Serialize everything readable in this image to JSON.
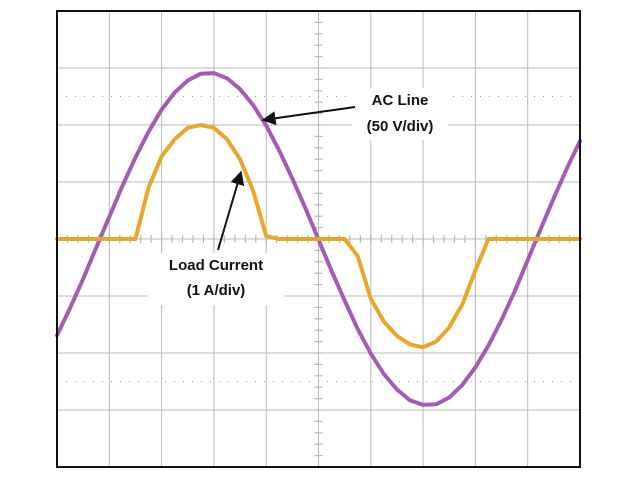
{
  "chart_data": {
    "type": "line",
    "x": [
      0,
      0.25,
      0.5,
      0.75,
      1,
      1.25,
      1.5,
      1.75,
      2,
      2.25,
      2.5,
      2.75,
      3,
      3.25,
      3.5,
      3.75,
      4,
      4.25,
      4.5,
      4.75,
      5,
      5.25,
      5.5,
      5.75,
      6,
      6.25,
      6.5,
      6.75,
      7,
      7.25,
      7.5,
      7.75,
      8,
      8.25,
      8.5,
      8.75,
      9,
      9.25,
      9.5,
      9.75,
      10
    ],
    "xlim": [
      0,
      10
    ],
    "ylim": [
      -4,
      4
    ],
    "grid": true,
    "series": [
      {
        "name": "AC Line",
        "scale": "(50 V/div)",
        "color": "#a25db3",
        "values": [
          -1.69,
          -1.21,
          -0.7,
          -0.15,
          0.39,
          0.93,
          1.43,
          1.88,
          2.27,
          2.57,
          2.78,
          2.9,
          2.91,
          2.82,
          2.63,
          2.35,
          1.99,
          1.55,
          1.06,
          0.54,
          -0.01,
          -0.56,
          -1.08,
          -1.58,
          -2.01,
          -2.37,
          -2.64,
          -2.83,
          -2.91,
          -2.9,
          -2.78,
          -2.56,
          -2.25,
          -1.87,
          -1.42,
          -0.92,
          -0.37,
          0.18,
          0.72,
          1.24,
          1.72
        ]
      },
      {
        "name": "Load Current",
        "scale": "(1 A/div)",
        "color": "#e9a62a",
        "values": [
          0,
          0,
          0,
          0,
          0,
          0,
          0,
          0.9,
          1.45,
          1.75,
          1.95,
          2.0,
          1.95,
          1.75,
          1.4,
          0.85,
          0.05,
          0,
          0,
          0,
          0,
          0,
          0,
          -0.3,
          -1.05,
          -1.45,
          -1.7,
          -1.85,
          -1.9,
          -1.8,
          -1.55,
          -1.15,
          -0.55,
          0,
          0,
          0,
          0,
          0,
          0,
          0,
          0
        ]
      }
    ]
  }
}
